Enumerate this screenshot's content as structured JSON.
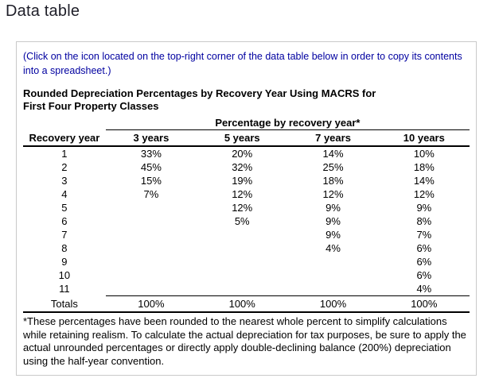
{
  "page": {
    "title": "Data table"
  },
  "panel": {
    "instruction": "(Click on the icon located on the top-right corner of the data table below in order to copy its contents into a spreadsheet.)",
    "heading_line1": "Rounded Depreciation Percentages by Recovery Year Using MACRS for",
    "heading_line2": "First Four Property Classes",
    "footnote": "*These percentages have been rounded to the nearest whole percent to simplify calculations while retaining realism. To calculate the actual depreciation for tax purposes, be sure to apply the actual unrounded percentages or directly apply double-declining balance (200%) depreciation using the half-year convention."
  },
  "table": {
    "spanner": "Percentage by recovery year*",
    "columns": [
      "Recovery year",
      "3 years",
      "5 years",
      "7 years",
      "10 years"
    ],
    "rows": [
      [
        "1",
        "33%",
        "20%",
        "14%",
        "10%"
      ],
      [
        "2",
        "45%",
        "32%",
        "25%",
        "18%"
      ],
      [
        "3",
        "15%",
        "19%",
        "18%",
        "14%"
      ],
      [
        "4",
        "7%",
        "12%",
        "12%",
        "12%"
      ],
      [
        "5",
        "",
        "12%",
        "9%",
        "9%"
      ],
      [
        "6",
        "",
        "5%",
        "9%",
        "8%"
      ],
      [
        "7",
        "",
        "",
        "9%",
        "7%"
      ],
      [
        "8",
        "",
        "",
        "4%",
        "6%"
      ],
      [
        "9",
        "",
        "",
        "",
        "6%"
      ],
      [
        "10",
        "",
        "",
        "",
        "6%"
      ],
      [
        "11",
        "",
        "",
        "",
        "4%"
      ]
    ],
    "totals": [
      "Totals",
      "100%",
      "100%",
      "100%",
      "100%"
    ]
  },
  "colors": {
    "instruction_blue": "#0000a0",
    "table_line": "#000000",
    "panel_border": "#c9c9c9"
  }
}
